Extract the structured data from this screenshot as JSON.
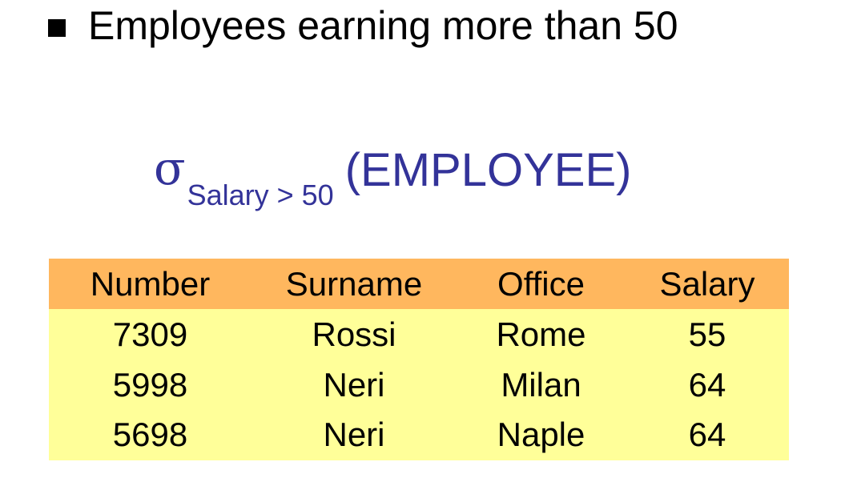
{
  "heading": "Employees earning more than 50",
  "formula": {
    "symbol": "σ",
    "condition": "Salary > 50",
    "relation": "(EMPLOYEE)"
  },
  "table": {
    "columns": [
      "Number",
      "Surname",
      "Office",
      "Salary"
    ],
    "rows": [
      [
        "7309",
        "Rossi",
        "Rome",
        "55"
      ],
      [
        "5998",
        "Neri",
        "Milan",
        "64"
      ],
      [
        "5698",
        "Neri",
        "Naple",
        "64"
      ]
    ]
  },
  "colors": {
    "formula": "#333399",
    "header_bg": "#ffb75e",
    "body_bg": "#ffff99"
  }
}
